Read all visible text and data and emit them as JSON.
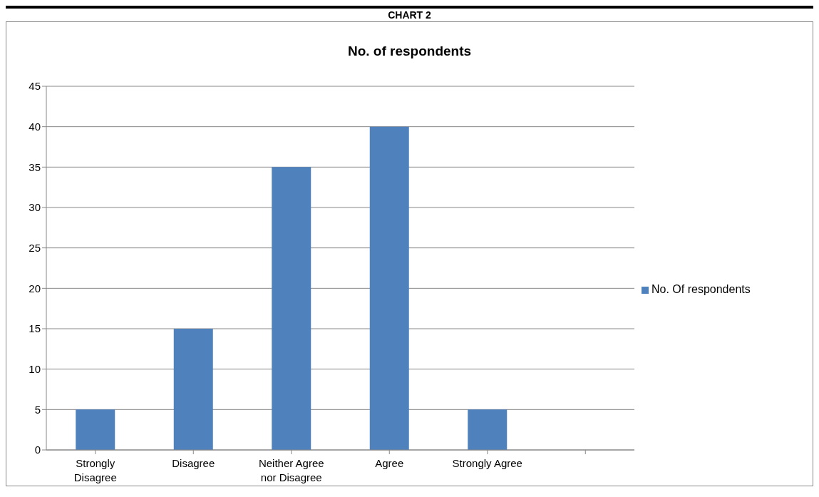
{
  "chart_data": {
    "type": "bar",
    "title": "CHART 2",
    "subtitle": "No. of respondents",
    "categories": [
      "Strongly Disagree",
      "Disagree",
      "Neither Agree nor Disagree",
      "Agree",
      "Strongly Agree",
      null
    ],
    "series": [
      {
        "name": "No. Of respondents",
        "color": "#4f81bd",
        "values": [
          5,
          15,
          35,
          40,
          5,
          null
        ]
      }
    ],
    "ylim": [
      0,
      45
    ],
    "yticks": [
      0,
      5,
      10,
      15,
      20,
      25,
      30,
      35,
      40,
      45
    ],
    "grid": "y",
    "legend": "right"
  }
}
